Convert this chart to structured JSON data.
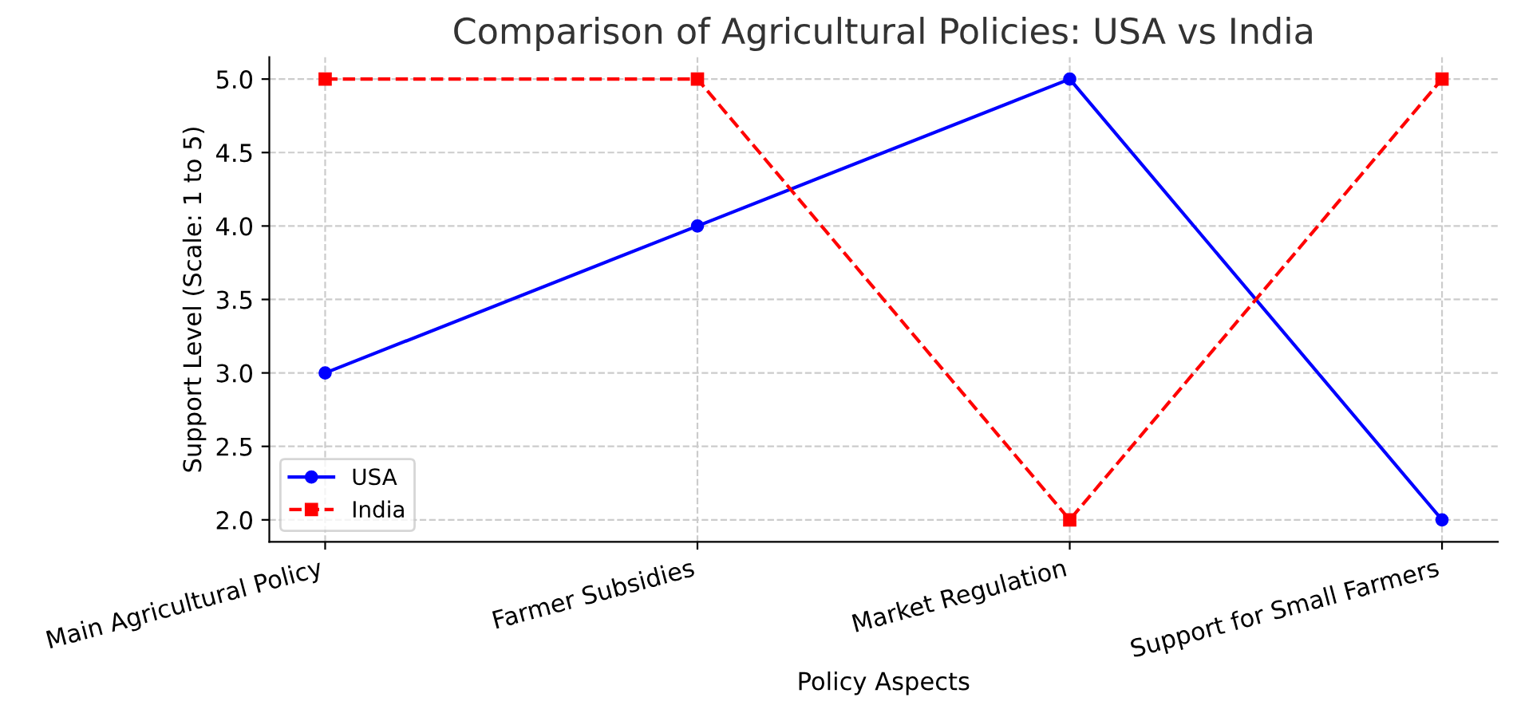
{
  "chart_data": {
    "type": "line",
    "title": "Comparison of Agricultural Policies: USA vs India",
    "xlabel": "Policy Aspects",
    "ylabel": "Support Level (Scale: 1 to 5)",
    "categories": [
      "Main Agricultural Policy",
      "Farmer Subsidies",
      "Market Regulation",
      "Support for Small Farmers"
    ],
    "series": [
      {
        "name": "USA",
        "color": "#0000ff",
        "values": [
          3,
          4,
          5,
          2
        ],
        "marker": "circle",
        "line_style": "solid"
      },
      {
        "name": "India",
        "color": "#ff0000",
        "values": [
          5,
          5,
          2,
          5
        ],
        "marker": "square",
        "line_style": "dashed"
      }
    ],
    "ylim": [
      1.85,
      5.15
    ],
    "yticks": [
      {
        "value": 2,
        "label": "2.0"
      },
      {
        "value": 2.5,
        "label": "2.5"
      },
      {
        "value": 3,
        "label": "3.0"
      },
      {
        "value": 3.5,
        "label": "3.5"
      },
      {
        "value": 4,
        "label": "4.0"
      },
      {
        "value": 4.5,
        "label": "4.5"
      },
      {
        "value": 5,
        "label": "5.0"
      }
    ],
    "grid": true,
    "legend": "bottom left"
  }
}
